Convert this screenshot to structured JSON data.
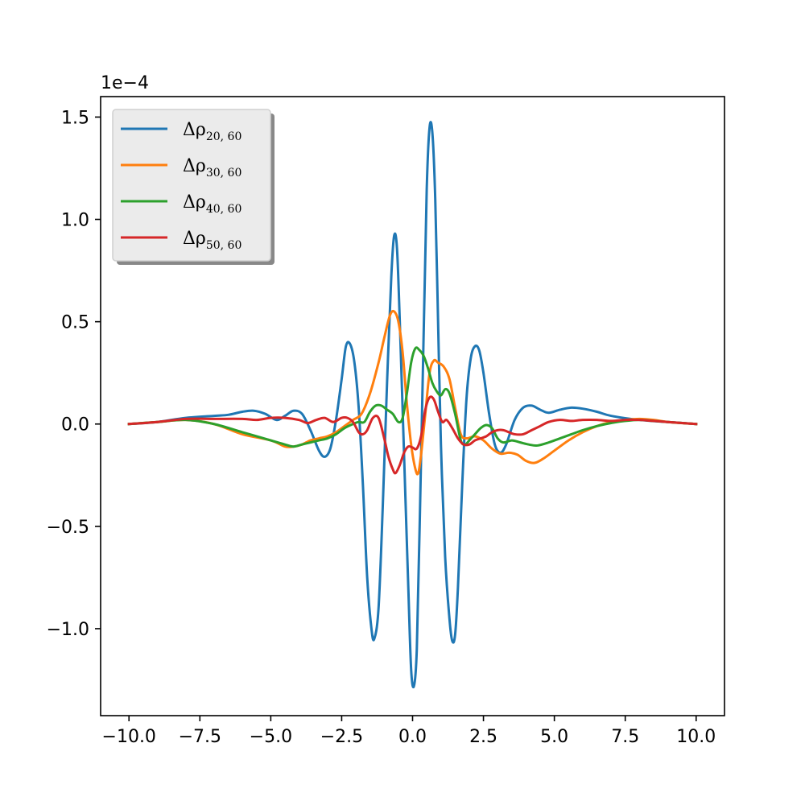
{
  "chart_data": {
    "type": "line",
    "title": "",
    "xlabel": "",
    "ylabel": "",
    "xlim": [
      -11,
      11
    ],
    "ylim": [
      -1.425,
      1.6
    ],
    "y_scale_label": "1e−4",
    "grid": false,
    "legend_position": "top-left",
    "x_ticks": [
      -10,
      -7.5,
      -5,
      -2.5,
      0,
      2.5,
      5,
      7.5,
      10
    ],
    "x_tick_labels": [
      "−10.0",
      "−7.5",
      "−5.0",
      "−2.5",
      "0.0",
      "2.5",
      "5.0",
      "7.5",
      "10.0"
    ],
    "y_ticks": [
      -1.0,
      -0.5,
      0.0,
      0.5,
      1.0,
      1.5
    ],
    "y_tick_labels": [
      "−1.0",
      "−0.5",
      "0.0",
      "0.5",
      "1.0",
      "1.5"
    ],
    "series": [
      {
        "name": "Δρ",
        "subscript": "20, 60",
        "color": "#1f77b4",
        "points": [
          [
            -10,
            0
          ],
          [
            -9,
            0.01
          ],
          [
            -8,
            0.03
          ],
          [
            -7,
            0.04
          ],
          [
            -6.5,
            0.045
          ],
          [
            -6,
            0.06
          ],
          [
            -5.6,
            0.065
          ],
          [
            -5.2,
            0.05
          ],
          [
            -4.8,
            0.02
          ],
          [
            -4.5,
            0.04
          ],
          [
            -4.2,
            0.065
          ],
          [
            -3.9,
            0.05
          ],
          [
            -3.6,
            -0.03
          ],
          [
            -3.3,
            -0.13
          ],
          [
            -3.1,
            -0.16
          ],
          [
            -2.9,
            -0.12
          ],
          [
            -2.7,
            0.02
          ],
          [
            -2.5,
            0.22
          ],
          [
            -2.35,
            0.38
          ],
          [
            -2.2,
            0.39
          ],
          [
            -2.05,
            0.3
          ],
          [
            -1.9,
            0.08
          ],
          [
            -1.75,
            -0.3
          ],
          [
            -1.6,
            -0.75
          ],
          [
            -1.45,
            -1.0
          ],
          [
            -1.35,
            -1.05
          ],
          [
            -1.2,
            -0.9
          ],
          [
            -1.05,
            -0.4
          ],
          [
            -0.9,
            0.2
          ],
          [
            -0.75,
            0.72
          ],
          [
            -0.65,
            0.92
          ],
          [
            -0.55,
            0.86
          ],
          [
            -0.45,
            0.5
          ],
          [
            -0.3,
            -0.15
          ],
          [
            -0.15,
            -0.8
          ],
          [
            -0.05,
            -1.2
          ],
          [
            0.05,
            -1.28
          ],
          [
            0.15,
            -1.1
          ],
          [
            0.25,
            -0.5
          ],
          [
            0.4,
            0.5
          ],
          [
            0.5,
            1.15
          ],
          [
            0.6,
            1.45
          ],
          [
            0.7,
            1.42
          ],
          [
            0.8,
            1.1
          ],
          [
            0.9,
            0.5
          ],
          [
            1.0,
            -0.1
          ],
          [
            1.15,
            -0.65
          ],
          [
            1.3,
            -0.95
          ],
          [
            1.4,
            -1.06
          ],
          [
            1.5,
            -1.03
          ],
          [
            1.6,
            -0.8
          ],
          [
            1.75,
            -0.3
          ],
          [
            1.9,
            0.12
          ],
          [
            2.05,
            0.32
          ],
          [
            2.2,
            0.38
          ],
          [
            2.35,
            0.36
          ],
          [
            2.5,
            0.25
          ],
          [
            2.7,
            0.05
          ],
          [
            2.9,
            -0.1
          ],
          [
            3.1,
            -0.14
          ],
          [
            3.3,
            -0.1
          ],
          [
            3.6,
            0.02
          ],
          [
            3.9,
            0.08
          ],
          [
            4.2,
            0.09
          ],
          [
            4.5,
            0.07
          ],
          [
            4.8,
            0.055
          ],
          [
            5.2,
            0.07
          ],
          [
            5.6,
            0.08
          ],
          [
            6.0,
            0.075
          ],
          [
            6.5,
            0.06
          ],
          [
            7.0,
            0.04
          ],
          [
            8.0,
            0.02
          ],
          [
            9.0,
            0.01
          ],
          [
            10.0,
            0.0
          ]
        ]
      },
      {
        "name": "Δρ",
        "subscript": "30, 60",
        "color": "#ff7f0e",
        "points": [
          [
            -10,
            0
          ],
          [
            -9,
            0.01
          ],
          [
            -8,
            0.02
          ],
          [
            -7,
            0.0
          ],
          [
            -6,
            -0.05
          ],
          [
            -5,
            -0.08
          ],
          [
            -4.5,
            -0.11
          ],
          [
            -4.2,
            -0.11
          ],
          [
            -3.9,
            -0.1
          ],
          [
            -3.6,
            -0.08
          ],
          [
            -3.3,
            -0.07
          ],
          [
            -3.0,
            -0.06
          ],
          [
            -2.7,
            -0.04
          ],
          [
            -2.4,
            -0.01
          ],
          [
            -2.1,
            0.02
          ],
          [
            -1.8,
            0.05
          ],
          [
            -1.5,
            0.15
          ],
          [
            -1.2,
            0.3
          ],
          [
            -1.0,
            0.42
          ],
          [
            -0.8,
            0.53
          ],
          [
            -0.65,
            0.55
          ],
          [
            -0.5,
            0.5
          ],
          [
            -0.35,
            0.35
          ],
          [
            -0.2,
            0.1
          ],
          [
            -0.05,
            -0.1
          ],
          [
            0.1,
            -0.22
          ],
          [
            0.2,
            -0.24
          ],
          [
            0.3,
            -0.15
          ],
          [
            0.45,
            0.05
          ],
          [
            0.6,
            0.25
          ],
          [
            0.75,
            0.31
          ],
          [
            0.9,
            0.3
          ],
          [
            1.1,
            0.28
          ],
          [
            1.3,
            0.22
          ],
          [
            1.5,
            0.08
          ],
          [
            1.7,
            -0.05
          ],
          [
            1.9,
            -0.07
          ],
          [
            2.2,
            -0.06
          ],
          [
            2.5,
            -0.08
          ],
          [
            2.8,
            -0.12
          ],
          [
            3.1,
            -0.145
          ],
          [
            3.4,
            -0.14
          ],
          [
            3.7,
            -0.15
          ],
          [
            4.0,
            -0.18
          ],
          [
            4.3,
            -0.19
          ],
          [
            4.6,
            -0.17
          ],
          [
            5.0,
            -0.13
          ],
          [
            5.5,
            -0.08
          ],
          [
            6.0,
            -0.04
          ],
          [
            6.5,
            -0.01
          ],
          [
            7.0,
            0.01
          ],
          [
            7.5,
            0.02
          ],
          [
            8.0,
            0.025
          ],
          [
            8.5,
            0.02
          ],
          [
            9.0,
            0.01
          ],
          [
            10.0,
            0.0
          ]
        ]
      },
      {
        "name": "Δρ",
        "subscript": "40, 60",
        "color": "#2ca02c",
        "points": [
          [
            -10,
            0
          ],
          [
            -9,
            0.01
          ],
          [
            -8,
            0.02
          ],
          [
            -7,
            0.0
          ],
          [
            -6,
            -0.04
          ],
          [
            -5,
            -0.08
          ],
          [
            -4.5,
            -0.1
          ],
          [
            -4.2,
            -0.11
          ],
          [
            -3.9,
            -0.1
          ],
          [
            -3.6,
            -0.09
          ],
          [
            -3.3,
            -0.08
          ],
          [
            -3.0,
            -0.07
          ],
          [
            -2.7,
            -0.05
          ],
          [
            -2.4,
            -0.02
          ],
          [
            -2.1,
            0.0
          ],
          [
            -1.9,
            0.01
          ],
          [
            -1.7,
            0.01
          ],
          [
            -1.5,
            0.06
          ],
          [
            -1.3,
            0.09
          ],
          [
            -1.1,
            0.09
          ],
          [
            -0.9,
            0.07
          ],
          [
            -0.7,
            0.05
          ],
          [
            -0.5,
            0.01
          ],
          [
            -0.35,
            0.03
          ],
          [
            -0.2,
            0.15
          ],
          [
            -0.05,
            0.3
          ],
          [
            0.1,
            0.37
          ],
          [
            0.25,
            0.36
          ],
          [
            0.4,
            0.33
          ],
          [
            0.55,
            0.27
          ],
          [
            0.7,
            0.2
          ],
          [
            0.85,
            0.16
          ],
          [
            1.0,
            0.14
          ],
          [
            1.15,
            0.17
          ],
          [
            1.3,
            0.15
          ],
          [
            1.5,
            0.05
          ],
          [
            1.7,
            -0.08
          ],
          [
            1.85,
            -0.1
          ],
          [
            2.0,
            -0.08
          ],
          [
            2.2,
            -0.05
          ],
          [
            2.4,
            -0.02
          ],
          [
            2.6,
            -0.005
          ],
          [
            2.8,
            -0.02
          ],
          [
            3.0,
            -0.07
          ],
          [
            3.2,
            -0.09
          ],
          [
            3.5,
            -0.08
          ],
          [
            3.8,
            -0.09
          ],
          [
            4.1,
            -0.1
          ],
          [
            4.4,
            -0.105
          ],
          [
            4.8,
            -0.09
          ],
          [
            5.2,
            -0.07
          ],
          [
            5.6,
            -0.05
          ],
          [
            6.0,
            -0.03
          ],
          [
            6.5,
            -0.01
          ],
          [
            7.0,
            0.005
          ],
          [
            7.5,
            0.015
          ],
          [
            8.0,
            0.02
          ],
          [
            8.5,
            0.015
          ],
          [
            9.0,
            0.01
          ],
          [
            10.0,
            0.0
          ]
        ]
      },
      {
        "name": "Δρ",
        "subscript": "50, 60",
        "color": "#d62728",
        "points": [
          [
            -10,
            0
          ],
          [
            -9,
            0.01
          ],
          [
            -8,
            0.025
          ],
          [
            -7,
            0.025
          ],
          [
            -6,
            0.025
          ],
          [
            -5.5,
            0.02
          ],
          [
            -5.0,
            0.03
          ],
          [
            -4.5,
            0.03
          ],
          [
            -4.0,
            0.02
          ],
          [
            -3.7,
            0.005
          ],
          [
            -3.4,
            0.02
          ],
          [
            -3.1,
            0.03
          ],
          [
            -2.8,
            0.01
          ],
          [
            -2.5,
            0.03
          ],
          [
            -2.3,
            0.03
          ],
          [
            -2.1,
            0.01
          ],
          [
            -1.9,
            -0.04
          ],
          [
            -1.75,
            -0.05
          ],
          [
            -1.6,
            -0.03
          ],
          [
            -1.4,
            0.03
          ],
          [
            -1.2,
            0.03
          ],
          [
            -1.0,
            -0.07
          ],
          [
            -0.85,
            -0.16
          ],
          [
            -0.7,
            -0.22
          ],
          [
            -0.6,
            -0.24
          ],
          [
            -0.45,
            -0.2
          ],
          [
            -0.3,
            -0.14
          ],
          [
            -0.15,
            -0.11
          ],
          [
            0.0,
            -0.115
          ],
          [
            0.15,
            -0.12
          ],
          [
            0.3,
            -0.06
          ],
          [
            0.45,
            0.07
          ],
          [
            0.6,
            0.13
          ],
          [
            0.75,
            0.12
          ],
          [
            0.9,
            0.06
          ],
          [
            1.05,
            0.01
          ],
          [
            1.2,
            0.02
          ],
          [
            1.4,
            -0.02
          ],
          [
            1.6,
            -0.07
          ],
          [
            1.8,
            -0.1
          ],
          [
            2.0,
            -0.1
          ],
          [
            2.2,
            -0.08
          ],
          [
            2.4,
            -0.07
          ],
          [
            2.6,
            -0.06
          ],
          [
            2.8,
            -0.04
          ],
          [
            3.0,
            -0.03
          ],
          [
            3.2,
            -0.03
          ],
          [
            3.4,
            -0.04
          ],
          [
            3.6,
            -0.05
          ],
          [
            3.9,
            -0.05
          ],
          [
            4.2,
            -0.03
          ],
          [
            4.5,
            -0.01
          ],
          [
            4.8,
            0.01
          ],
          [
            5.2,
            0.02
          ],
          [
            5.6,
            0.015
          ],
          [
            6.0,
            0.02
          ],
          [
            6.5,
            0.02
          ],
          [
            7.0,
            0.015
          ],
          [
            7.5,
            0.02
          ],
          [
            8.0,
            0.02
          ],
          [
            8.5,
            0.015
          ],
          [
            9.0,
            0.01
          ],
          [
            10.0,
            0.0
          ]
        ]
      }
    ]
  }
}
